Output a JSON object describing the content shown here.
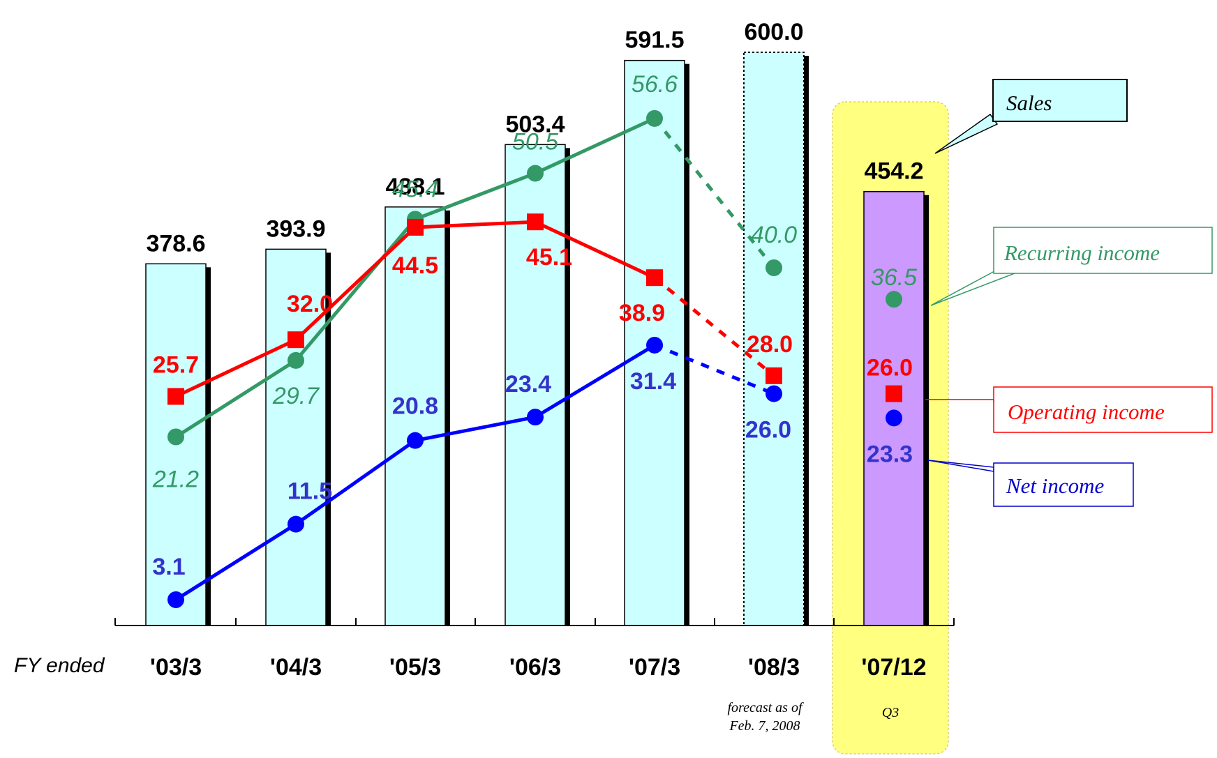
{
  "chart_data": {
    "type": "bar",
    "categories": [
      "'03/3",
      "'04/3",
      "'05/3",
      "'06/3",
      "'07/3",
      "'08/3",
      "'07/12"
    ],
    "x_prefix": "FY ended",
    "series": [
      {
        "name": "Sales",
        "type": "bar",
        "values": [
          378.6,
          393.9,
          438.1,
          503.4,
          591.5,
          600.0,
          454.2
        ]
      },
      {
        "name": "Recurring income",
        "type": "line",
        "values": [
          21.2,
          29.7,
          45.4,
          50.5,
          56.6,
          40.0,
          36.5
        ]
      },
      {
        "name": "Operating income",
        "type": "line",
        "values": [
          25.7,
          32.0,
          44.5,
          45.1,
          38.9,
          28.0,
          26.0
        ]
      },
      {
        "name": "Net income",
        "type": "line",
        "values": [
          3.1,
          11.5,
          20.8,
          23.4,
          31.4,
          26.0,
          23.3
        ]
      }
    ],
    "bar_labels": [
      "378.6",
      "393.9",
      "438.1",
      "503.4",
      "591.5",
      "600.0",
      "454.2"
    ],
    "recurring_labels": [
      "21.2",
      "29.7",
      "45.4",
      "50.5",
      "56.6",
      "40.0",
      "36.5"
    ],
    "operating_labels": [
      "25.7",
      "32.0",
      "44.5",
      "45.1",
      "38.9",
      "28.0",
      "26.0"
    ],
    "net_labels": [
      "3.1",
      "11.5",
      "20.8",
      "23.4",
      "31.4",
      "26.0",
      "23.3"
    ],
    "annotations": {
      "forecast_line1": "forecast as of",
      "forecast_line2": "Feb. 7, 2008",
      "q3": "Q3"
    },
    "legend": {
      "sales": "Sales",
      "recurring": "Recurring income",
      "operating": "Operating income",
      "net": "Net income"
    },
    "colors": {
      "bar": "#ccffff",
      "bar_q3": "#cc99ff",
      "highlight": "#ffff80",
      "recurring": "#339966",
      "operating": "#ff0000",
      "net": "#0000ff",
      "net_label": "#3333cc"
    },
    "notes": [
      "'08/3 is a forecast (dashed)",
      "'07/12 Q3 highlighted"
    ]
  }
}
